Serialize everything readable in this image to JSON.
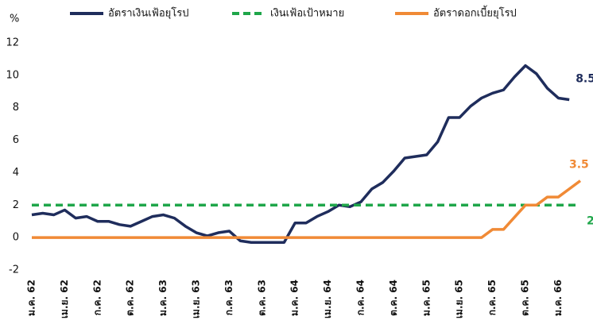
{
  "chart_data": {
    "type": "line",
    "y_label": "%",
    "categories": [
      "ม.ค. 62",
      null,
      null,
      "เม.ย. 62",
      null,
      null,
      "ก.ค. 62",
      null,
      null,
      "ต.ค. 62",
      null,
      null,
      "ม.ค. 63",
      null,
      null,
      "เม.ย. 63",
      null,
      null,
      "ก.ค. 63",
      null,
      null,
      "ต.ค. 63",
      null,
      null,
      "ม.ค. 64",
      null,
      null,
      "เม.ย. 64",
      null,
      null,
      "ก.ค. 64",
      null,
      null,
      "ต.ค. 64",
      null,
      null,
      "ม.ค. 65",
      null,
      null,
      "เม.ย. 65",
      null,
      null,
      "ก.ค. 65",
      null,
      null,
      "ต.ค. 65",
      null,
      null,
      "ม.ค. 66",
      null,
      null
    ],
    "series": [
      {
        "name": "อัตราเงินเฟ้อยุโรป",
        "color": "#1f2d5c",
        "dash": false,
        "values": [
          1.4,
          1.5,
          1.4,
          1.7,
          1.2,
          1.3,
          1.0,
          1.0,
          0.8,
          0.7,
          1.0,
          1.3,
          1.4,
          1.2,
          0.7,
          0.3,
          0.1,
          0.3,
          0.4,
          -0.2,
          -0.3,
          -0.3,
          -0.3,
          -0.3,
          0.9,
          0.9,
          1.3,
          1.6,
          2.0,
          1.9,
          2.2,
          3.0,
          3.4,
          4.1,
          4.9,
          5.0,
          5.1,
          5.9,
          7.4,
          7.4,
          8.1,
          8.6,
          8.9,
          9.1,
          9.9,
          10.6,
          10.1,
          9.2,
          8.6,
          8.5,
          null
        ]
      },
      {
        "name": "เงินเฟ้อเป้าหมาย",
        "color": "#1fa64a",
        "dash": true,
        "values": [
          2,
          2,
          2,
          2,
          2,
          2,
          2,
          2,
          2,
          2,
          2,
          2,
          2,
          2,
          2,
          2,
          2,
          2,
          2,
          2,
          2,
          2,
          2,
          2,
          2,
          2,
          2,
          2,
          2,
          2,
          2,
          2,
          2,
          2,
          2,
          2,
          2,
          2,
          2,
          2,
          2,
          2,
          2,
          2,
          2,
          2,
          2,
          2,
          2,
          2,
          2
        ]
      },
      {
        "name": "อัตราดอกเบี้ยยุโรป",
        "color": "#f08a36",
        "dash": false,
        "values": [
          0,
          0,
          0,
          0,
          0,
          0,
          0,
          0,
          0,
          0,
          0,
          0,
          0,
          0,
          0,
          0,
          0,
          0,
          0,
          0,
          0,
          0,
          0,
          0,
          0,
          0,
          0,
          0,
          0,
          0,
          0,
          0,
          0,
          0,
          0,
          0,
          0,
          0,
          0,
          0,
          0,
          0,
          0.5,
          0.5,
          1.25,
          2,
          2,
          2.5,
          2.5,
          3.0,
          3.5
        ]
      }
    ],
    "end_labels": [
      {
        "series": 0,
        "index": 49
      },
      {
        "series": 2,
        "index": 50
      },
      {
        "series": 1,
        "index": 50
      }
    ],
    "ylim": [
      -2,
      12
    ],
    "yticks": [
      -2,
      0,
      2,
      4,
      6,
      8,
      10,
      12
    ],
    "grid": false
  }
}
